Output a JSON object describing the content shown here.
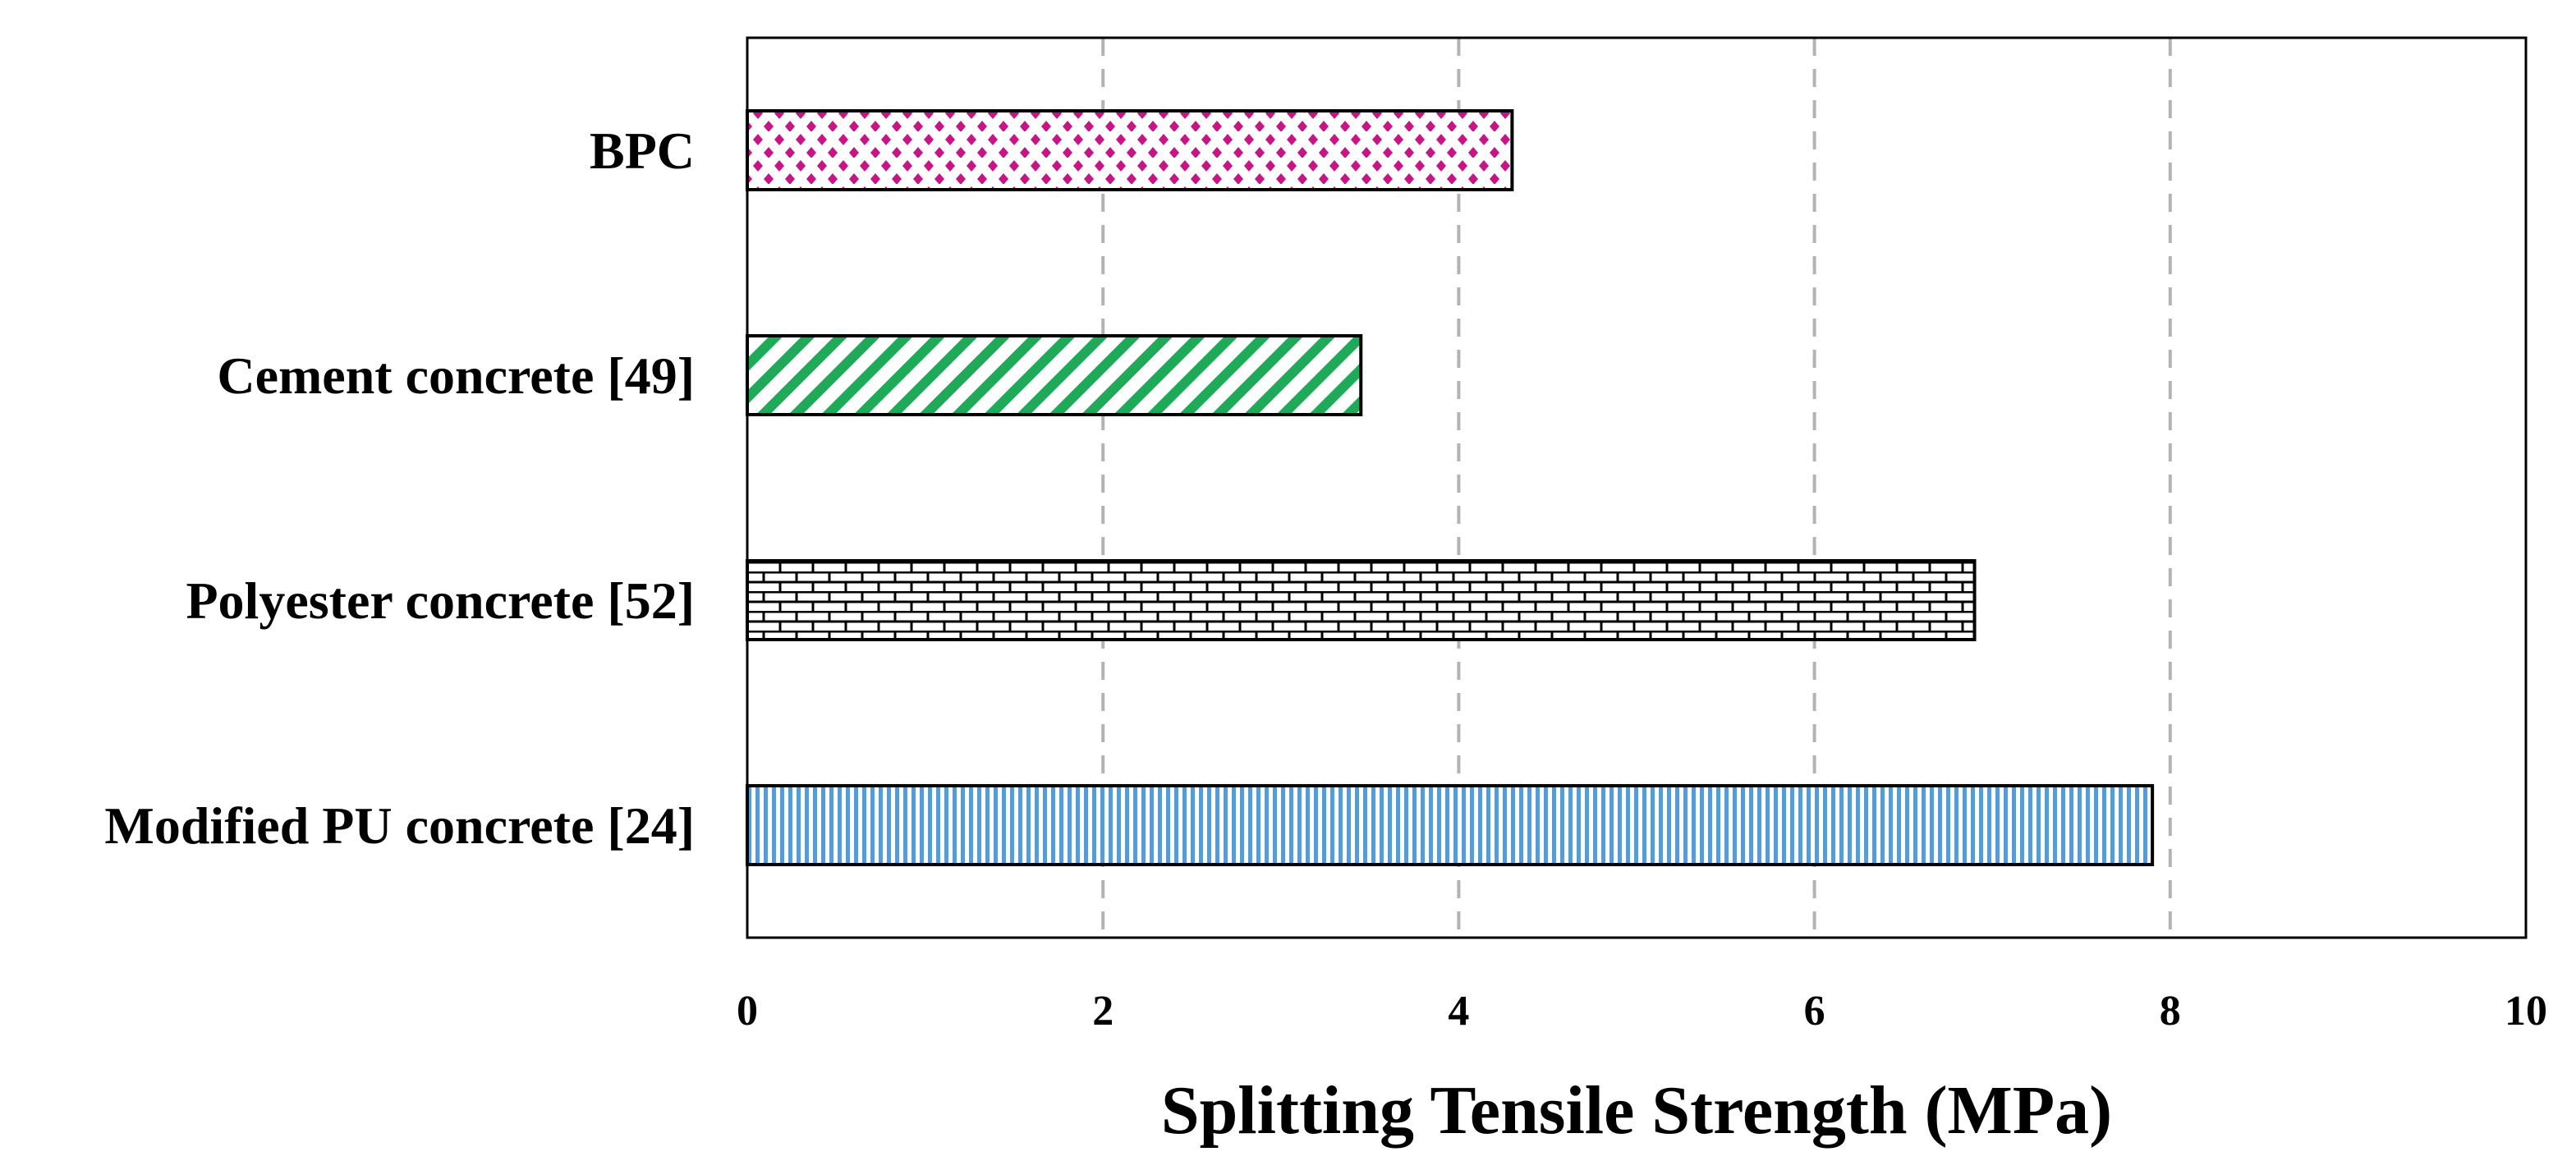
{
  "chart_data": {
    "type": "bar",
    "orientation": "horizontal",
    "title": "",
    "xlabel": "Splitting Tensile Strength (MPa)",
    "ylabel": "",
    "xlim": [
      0,
      10
    ],
    "xticks": [
      "0",
      "2",
      "4",
      "6",
      "8",
      "10"
    ],
    "grid": "vertical dashed",
    "legend": "none",
    "categories": [
      "BPC",
      "Cement concrete [49]",
      "Polyester concrete [52]",
      "Modified PU concrete [24]"
    ],
    "values": [
      4.3,
      3.45,
      6.9,
      7.9
    ],
    "bar_styles": [
      {
        "pattern": "dots",
        "color": "#c71585"
      },
      {
        "pattern": "diagonal-stripes",
        "color": "#1faa5a"
      },
      {
        "pattern": "bricks",
        "color": "#000000"
      },
      {
        "pattern": "vertical-stripes",
        "color": "#5b9bd5"
      }
    ]
  }
}
